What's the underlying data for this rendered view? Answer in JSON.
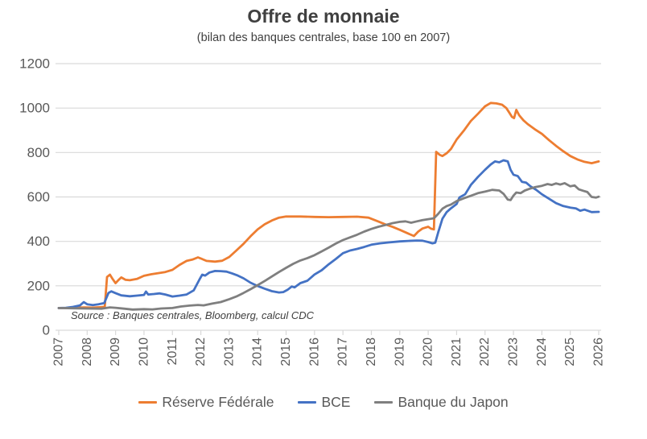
{
  "header": {
    "title": "Offre de monnaie",
    "subtitle": "(bilan des banques centrales, base 100 en 2007)"
  },
  "source_note": "Source : Banques centrales, Bloomberg, calcul CDC",
  "chart_data": {
    "type": "line",
    "title": "Offre de monnaie",
    "subtitle": "(bilan des banques centrales, base 100 en 2007)",
    "xlabel": "",
    "ylabel": "",
    "ylim": [
      0,
      1200
    ],
    "y_ticks": [
      0,
      200,
      400,
      600,
      800,
      1000,
      1200
    ],
    "x_ticks": [
      2007,
      2008,
      2009,
      2010,
      2011,
      2012,
      2013,
      2014,
      2015,
      2016,
      2017,
      2018,
      2019,
      2020,
      2021,
      2022,
      2023,
      2024,
      2025,
      2026
    ],
    "grid": "horizontal",
    "legend_position": "bottom",
    "colors": {
      "gridline": "#D9D9D9",
      "axis_text": "#595959",
      "title_text": "#404040"
    },
    "series": [
      {
        "name": "Réserve Fédérale",
        "color": "#ED7D31",
        "points": [
          [
            2007.0,
            100
          ],
          [
            2007.3,
            100
          ],
          [
            2007.6,
            102
          ],
          [
            2007.9,
            103
          ],
          [
            2008.2,
            102
          ],
          [
            2008.5,
            104
          ],
          [
            2008.62,
            106
          ],
          [
            2008.7,
            240
          ],
          [
            2008.8,
            250
          ],
          [
            2008.9,
            230
          ],
          [
            2009.0,
            212
          ],
          [
            2009.1,
            226
          ],
          [
            2009.2,
            238
          ],
          [
            2009.35,
            227
          ],
          [
            2009.5,
            225
          ],
          [
            2009.75,
            231
          ],
          [
            2010.0,
            245
          ],
          [
            2010.25,
            252
          ],
          [
            2010.5,
            257
          ],
          [
            2010.75,
            262
          ],
          [
            2011.0,
            272
          ],
          [
            2011.25,
            294
          ],
          [
            2011.5,
            312
          ],
          [
            2011.7,
            318
          ],
          [
            2011.9,
            328
          ],
          [
            2012.0,
            323
          ],
          [
            2012.2,
            312
          ],
          [
            2012.5,
            309
          ],
          [
            2012.75,
            313
          ],
          [
            2013.0,
            330
          ],
          [
            2013.25,
            359
          ],
          [
            2013.5,
            389
          ],
          [
            2013.75,
            423
          ],
          [
            2014.0,
            454
          ],
          [
            2014.25,
            477
          ],
          [
            2014.5,
            494
          ],
          [
            2014.75,
            507
          ],
          [
            2015.0,
            512
          ],
          [
            2015.5,
            512
          ],
          [
            2016.0,
            510
          ],
          [
            2016.5,
            509
          ],
          [
            2017.0,
            510
          ],
          [
            2017.5,
            511
          ],
          [
            2017.9,
            507
          ],
          [
            2018.25,
            489
          ],
          [
            2018.5,
            476
          ],
          [
            2018.75,
            465
          ],
          [
            2019.0,
            452
          ],
          [
            2019.25,
            438
          ],
          [
            2019.5,
            424
          ],
          [
            2019.65,
            444
          ],
          [
            2019.8,
            458
          ],
          [
            2020.0,
            466
          ],
          [
            2020.1,
            457
          ],
          [
            2020.2,
            454
          ],
          [
            2020.28,
            803
          ],
          [
            2020.4,
            790
          ],
          [
            2020.5,
            784
          ],
          [
            2020.65,
            797
          ],
          [
            2020.8,
            816
          ],
          [
            2021.0,
            858
          ],
          [
            2021.25,
            898
          ],
          [
            2021.5,
            942
          ],
          [
            2021.75,
            974
          ],
          [
            2022.0,
            1008
          ],
          [
            2022.2,
            1023
          ],
          [
            2022.4,
            1021
          ],
          [
            2022.6,
            1015
          ],
          [
            2022.75,
            1000
          ],
          [
            2022.85,
            980
          ],
          [
            2022.95,
            960
          ],
          [
            2023.02,
            955
          ],
          [
            2023.1,
            992
          ],
          [
            2023.2,
            968
          ],
          [
            2023.35,
            945
          ],
          [
            2023.5,
            928
          ],
          [
            2023.75,
            905
          ],
          [
            2024.0,
            884
          ],
          [
            2024.25,
            856
          ],
          [
            2024.5,
            830
          ],
          [
            2024.75,
            806
          ],
          [
            2025.0,
            784
          ],
          [
            2025.25,
            769
          ],
          [
            2025.5,
            758
          ],
          [
            2025.75,
            752
          ],
          [
            2026.0,
            760
          ]
        ]
      },
      {
        "name": "BCE",
        "color": "#4472C4",
        "points": [
          [
            2007.0,
            100
          ],
          [
            2007.25,
            101
          ],
          [
            2007.5,
            105
          ],
          [
            2007.75,
            112
          ],
          [
            2007.88,
            127
          ],
          [
            2008.0,
            117
          ],
          [
            2008.2,
            113
          ],
          [
            2008.4,
            117
          ],
          [
            2008.6,
            122
          ],
          [
            2008.75,
            168
          ],
          [
            2008.85,
            175
          ],
          [
            2009.0,
            167
          ],
          [
            2009.2,
            157
          ],
          [
            2009.5,
            153
          ],
          [
            2009.75,
            156
          ],
          [
            2010.0,
            159
          ],
          [
            2010.07,
            174
          ],
          [
            2010.15,
            161
          ],
          [
            2010.35,
            163
          ],
          [
            2010.55,
            166
          ],
          [
            2010.75,
            161
          ],
          [
            2011.0,
            152
          ],
          [
            2011.25,
            156
          ],
          [
            2011.5,
            161
          ],
          [
            2011.75,
            180
          ],
          [
            2011.95,
            228
          ],
          [
            2012.05,
            250
          ],
          [
            2012.15,
            246
          ],
          [
            2012.3,
            260
          ],
          [
            2012.5,
            267
          ],
          [
            2012.7,
            266
          ],
          [
            2012.9,
            264
          ],
          [
            2013.1,
            256
          ],
          [
            2013.3,
            246
          ],
          [
            2013.5,
            234
          ],
          [
            2013.75,
            214
          ],
          [
            2014.0,
            199
          ],
          [
            2014.25,
            187
          ],
          [
            2014.5,
            176
          ],
          [
            2014.75,
            170
          ],
          [
            2014.9,
            172
          ],
          [
            2015.05,
            182
          ],
          [
            2015.2,
            197
          ],
          [
            2015.3,
            193
          ],
          [
            2015.5,
            212
          ],
          [
            2015.75,
            223
          ],
          [
            2016.0,
            251
          ],
          [
            2016.25,
            270
          ],
          [
            2016.5,
            297
          ],
          [
            2016.75,
            321
          ],
          [
            2017.0,
            347
          ],
          [
            2017.25,
            359
          ],
          [
            2017.5,
            366
          ],
          [
            2017.75,
            375
          ],
          [
            2018.0,
            385
          ],
          [
            2018.3,
            391
          ],
          [
            2018.6,
            395
          ],
          [
            2019.0,
            400
          ],
          [
            2019.3,
            402
          ],
          [
            2019.6,
            404
          ],
          [
            2019.8,
            403
          ],
          [
            2020.0,
            397
          ],
          [
            2020.15,
            391
          ],
          [
            2020.25,
            394
          ],
          [
            2020.35,
            440
          ],
          [
            2020.5,
            502
          ],
          [
            2020.65,
            532
          ],
          [
            2020.8,
            549
          ],
          [
            2021.0,
            568
          ],
          [
            2021.1,
            598
          ],
          [
            2021.3,
            612
          ],
          [
            2021.5,
            654
          ],
          [
            2021.75,
            690
          ],
          [
            2022.0,
            722
          ],
          [
            2022.2,
            746
          ],
          [
            2022.35,
            760
          ],
          [
            2022.5,
            756
          ],
          [
            2022.65,
            765
          ],
          [
            2022.8,
            760
          ],
          [
            2022.9,
            722
          ],
          [
            2023.0,
            700
          ],
          [
            2023.15,
            694
          ],
          [
            2023.3,
            668
          ],
          [
            2023.45,
            664
          ],
          [
            2023.6,
            648
          ],
          [
            2023.8,
            632
          ],
          [
            2024.0,
            612
          ],
          [
            2024.25,
            592
          ],
          [
            2024.5,
            572
          ],
          [
            2024.75,
            559
          ],
          [
            2025.0,
            552
          ],
          [
            2025.2,
            548
          ],
          [
            2025.35,
            538
          ],
          [
            2025.5,
            543
          ],
          [
            2025.75,
            532
          ],
          [
            2026.0,
            533
          ]
        ]
      },
      {
        "name": "Banque du Japon",
        "color": "#7F7F7F",
        "points": [
          [
            2007.0,
            100
          ],
          [
            2007.5,
            99
          ],
          [
            2008.0,
            98
          ],
          [
            2008.5,
            97
          ],
          [
            2008.8,
            103
          ],
          [
            2009.0,
            101
          ],
          [
            2009.3,
            97
          ],
          [
            2009.6,
            93
          ],
          [
            2010.0,
            95
          ],
          [
            2010.3,
            94
          ],
          [
            2010.6,
            98
          ],
          [
            2011.0,
            100
          ],
          [
            2011.3,
            107
          ],
          [
            2011.6,
            111
          ],
          [
            2011.9,
            114
          ],
          [
            2012.1,
            112
          ],
          [
            2012.4,
            120
          ],
          [
            2012.7,
            127
          ],
          [
            2013.0,
            140
          ],
          [
            2013.25,
            152
          ],
          [
            2013.5,
            168
          ],
          [
            2013.75,
            185
          ],
          [
            2014.0,
            203
          ],
          [
            2014.25,
            222
          ],
          [
            2014.5,
            242
          ],
          [
            2014.75,
            262
          ],
          [
            2015.0,
            281
          ],
          [
            2015.25,
            299
          ],
          [
            2015.5,
            314
          ],
          [
            2015.75,
            325
          ],
          [
            2016.0,
            338
          ],
          [
            2016.25,
            355
          ],
          [
            2016.5,
            372
          ],
          [
            2016.75,
            390
          ],
          [
            2017.0,
            406
          ],
          [
            2017.25,
            418
          ],
          [
            2017.5,
            430
          ],
          [
            2017.75,
            444
          ],
          [
            2018.0,
            456
          ],
          [
            2018.25,
            466
          ],
          [
            2018.5,
            474
          ],
          [
            2018.75,
            482
          ],
          [
            2019.0,
            488
          ],
          [
            2019.2,
            490
          ],
          [
            2019.4,
            484
          ],
          [
            2019.6,
            490
          ],
          [
            2019.8,
            496
          ],
          [
            2020.0,
            500
          ],
          [
            2020.2,
            504
          ],
          [
            2020.35,
            524
          ],
          [
            2020.5,
            547
          ],
          [
            2020.65,
            559
          ],
          [
            2020.8,
            566
          ],
          [
            2021.0,
            581
          ],
          [
            2021.25,
            594
          ],
          [
            2021.5,
            605
          ],
          [
            2021.75,
            617
          ],
          [
            2022.0,
            624
          ],
          [
            2022.25,
            632
          ],
          [
            2022.5,
            629
          ],
          [
            2022.65,
            614
          ],
          [
            2022.8,
            588
          ],
          [
            2022.9,
            586
          ],
          [
            2023.0,
            606
          ],
          [
            2023.1,
            620
          ],
          [
            2023.25,
            617
          ],
          [
            2023.4,
            629
          ],
          [
            2023.55,
            636
          ],
          [
            2023.75,
            644
          ],
          [
            2024.0,
            650
          ],
          [
            2024.2,
            658
          ],
          [
            2024.35,
            654
          ],
          [
            2024.5,
            661
          ],
          [
            2024.65,
            656
          ],
          [
            2024.8,
            662
          ],
          [
            2025.0,
            648
          ],
          [
            2025.15,
            652
          ],
          [
            2025.3,
            634
          ],
          [
            2025.45,
            628
          ],
          [
            2025.6,
            622
          ],
          [
            2025.75,
            600
          ],
          [
            2025.9,
            597
          ],
          [
            2026.0,
            601
          ]
        ]
      }
    ]
  }
}
